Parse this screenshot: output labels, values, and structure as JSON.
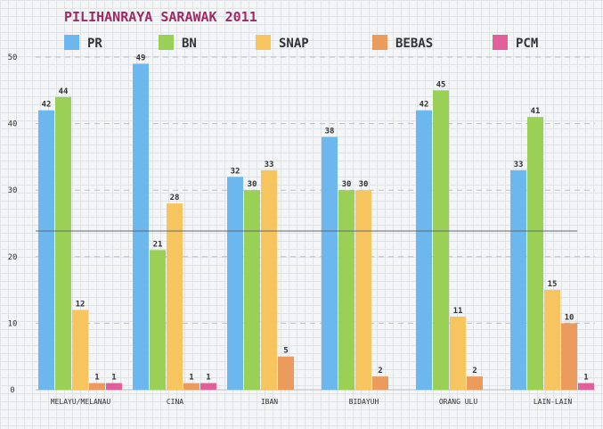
{
  "chart_data": {
    "type": "bar",
    "title": "PILIHANRAYA SARAWAK 2011",
    "xlabel": "",
    "ylabel": "",
    "ylim": [
      0,
      50
    ],
    "yticks": [
      0,
      10,
      20,
      30,
      40,
      50
    ],
    "grid": true,
    "legend_position": "top",
    "categories": [
      "MELAYU/MELANAU",
      "CINA",
      "IBAN",
      "BIDAYUH",
      "ORANG ULU",
      "LAIN-LAIN"
    ],
    "series": [
      {
        "name": "PR",
        "color": "#6cb8ee",
        "values": [
          42,
          49,
          32,
          38,
          42,
          33
        ]
      },
      {
        "name": "BN",
        "color": "#9bd056",
        "values": [
          44,
          21,
          30,
          30,
          45,
          41
        ]
      },
      {
        "name": "SNAP",
        "color": "#f6c55f",
        "values": [
          12,
          28,
          33,
          30,
          11,
          15
        ]
      },
      {
        "name": "BEBAS",
        "color": "#ec9b5f",
        "values": [
          1,
          1,
          5,
          2,
          2,
          10
        ]
      },
      {
        "name": "PCM",
        "color": "#e0609a",
        "values": [
          1,
          1,
          null,
          null,
          null,
          1
        ]
      }
    ]
  },
  "colors": {
    "title": "#9c2a63",
    "text": "#333333",
    "grid": "#b9bfc7",
    "axis": "#555555"
  }
}
